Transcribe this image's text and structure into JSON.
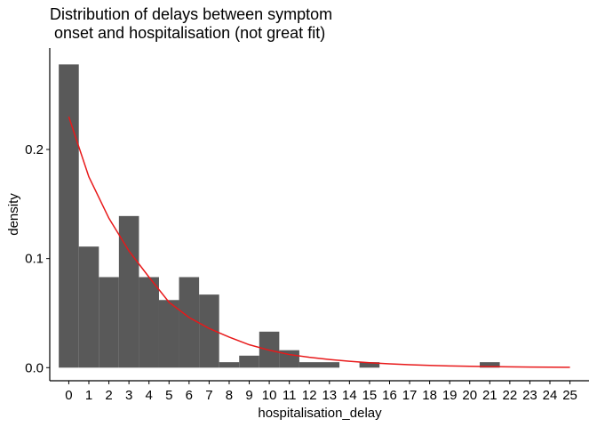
{
  "chart_data": {
    "type": "bar",
    "title_line1": "Distribution of delays between symptom",
    "title_line2": " onset and hospitalisation (not great fit)",
    "xlabel": "hospitalisation_delay",
    "ylabel": "density",
    "x_ticks": [
      "0",
      "1",
      "2",
      "3",
      "4",
      "5",
      "6",
      "7",
      "8",
      "9",
      "10",
      "11",
      "12",
      "13",
      "14",
      "15",
      "16",
      "17",
      "18",
      "19",
      "20",
      "21",
      "22",
      "23",
      "24",
      "25"
    ],
    "y_ticks": [
      {
        "value": 0.0,
        "label": "0.0"
      },
      {
        "value": 0.1,
        "label": "0.1"
      },
      {
        "value": 0.2,
        "label": "0.2"
      }
    ],
    "xlim": [
      -0.95,
      25.95
    ],
    "ylim": [
      -0.012,
      0.293
    ],
    "histogram": {
      "bin_width": 1,
      "bins": [
        {
          "x": 0,
          "density": 0.278
        },
        {
          "x": 1,
          "density": 0.111
        },
        {
          "x": 2,
          "density": 0.083
        },
        {
          "x": 3,
          "density": 0.139
        },
        {
          "x": 4,
          "density": 0.083
        },
        {
          "x": 5,
          "density": 0.062
        },
        {
          "x": 6,
          "density": 0.083
        },
        {
          "x": 7,
          "density": 0.067
        },
        {
          "x": 8,
          "density": 0.005
        },
        {
          "x": 9,
          "density": 0.011
        },
        {
          "x": 10,
          "density": 0.033
        },
        {
          "x": 11,
          "density": 0.016
        },
        {
          "x": 12,
          "density": 0.005
        },
        {
          "x": 13,
          "density": 0.005
        },
        {
          "x": 15,
          "density": 0.005
        },
        {
          "x": 21,
          "density": 0.005
        }
      ]
    },
    "fit_line": {
      "color": "#e8191a",
      "points": [
        [
          0.0,
          0.23
        ],
        [
          1.0,
          0.175
        ],
        [
          2.0,
          0.137
        ],
        [
          3.0,
          0.107
        ],
        [
          4.0,
          0.083
        ],
        [
          5.0,
          0.06
        ],
        [
          6.0,
          0.046
        ],
        [
          7.0,
          0.036
        ],
        [
          8.0,
          0.028
        ],
        [
          9.0,
          0.021
        ],
        [
          10.0,
          0.016
        ],
        [
          11.0,
          0.012
        ],
        [
          12.0,
          0.0095
        ],
        [
          13.0,
          0.0075
        ],
        [
          14.0,
          0.0058
        ],
        [
          15.0,
          0.0045
        ],
        [
          16.0,
          0.0035
        ],
        [
          17.0,
          0.0027
        ],
        [
          18.0,
          0.0021
        ],
        [
          19.0,
          0.0016
        ],
        [
          20.0,
          0.0012
        ],
        [
          21.0,
          0.0009
        ],
        [
          22.0,
          0.0007
        ],
        [
          23.0,
          0.0005
        ],
        [
          24.0,
          0.0004
        ],
        [
          25.0,
          0.0003
        ]
      ]
    },
    "bar_color": "#595959",
    "grid": false,
    "legend": "none"
  }
}
